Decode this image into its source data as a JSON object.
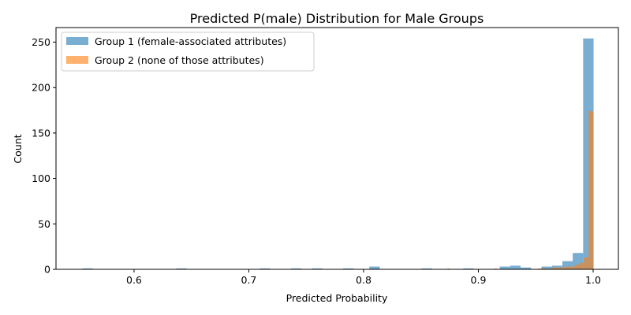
{
  "chart_data": {
    "type": "histogram",
    "title": "Predicted P(male) Distribution for Male Groups",
    "xlabel": "Predicted Probability",
    "ylabel": "Count",
    "xlim": [
      0.532,
      1.022
    ],
    "ylim": [
      0,
      266
    ],
    "xticks": [
      0.6,
      0.7,
      0.8,
      0.9,
      1.0
    ],
    "xtick_labels": [
      "0.6",
      "0.7",
      "0.8",
      "0.9",
      "1.0"
    ],
    "yticks": [
      0,
      50,
      100,
      150,
      200,
      250
    ],
    "ytick_labels": [
      "0",
      "50",
      "100",
      "150",
      "200",
      "250"
    ],
    "legend_position": "upper-left",
    "grid": false,
    "series": [
      {
        "name": "Group 1 (female-associated attributes)",
        "color": "#1f77b4",
        "opacity": 0.6,
        "bins": [
          {
            "x0": 0.555,
            "x1": 0.5641,
            "count": 1
          },
          {
            "x0": 0.6368,
            "x1": 0.6459,
            "count": 1
          },
          {
            "x0": 0.7095,
            "x1": 0.7186,
            "count": 1
          },
          {
            "x0": 0.7368,
            "x1": 0.7459,
            "count": 1
          },
          {
            "x0": 0.755,
            "x1": 0.7641,
            "count": 1
          },
          {
            "x0": 0.7822,
            "x1": 0.7913,
            "count": 1
          },
          {
            "x0": 0.805,
            "x1": 0.8141,
            "count": 3
          },
          {
            "x0": 0.8504,
            "x1": 0.8595,
            "count": 1
          },
          {
            "x0": 0.8868,
            "x1": 0.8959,
            "count": 1
          },
          {
            "x0": 0.9186,
            "x1": 0.9277,
            "count": 3
          },
          {
            "x0": 0.9277,
            "x1": 0.9368,
            "count": 4
          },
          {
            "x0": 0.9368,
            "x1": 0.9459,
            "count": 2
          },
          {
            "x0": 0.955,
            "x1": 0.9641,
            "count": 3
          },
          {
            "x0": 0.9641,
            "x1": 0.9732,
            "count": 4
          },
          {
            "x0": 0.9732,
            "x1": 0.9822,
            "count": 9
          },
          {
            "x0": 0.9822,
            "x1": 0.9913,
            "count": 18
          },
          {
            "x0": 0.9913,
            "x1": 1.0004,
            "count": 254
          }
        ]
      },
      {
        "name": "Group 2 (none of those attributes)",
        "color": "#ff7f0e",
        "opacity": 0.6,
        "bins": [
          {
            "x0": 0.873,
            "x1": 0.875,
            "count": 1
          },
          {
            "x0": 0.914,
            "x1": 0.916,
            "count": 1
          },
          {
            "x0": 0.952,
            "x1": 0.956,
            "count": 1
          },
          {
            "x0": 0.956,
            "x1": 0.96,
            "count": 1
          },
          {
            "x0": 0.964,
            "x1": 0.968,
            "count": 2
          },
          {
            "x0": 0.968,
            "x1": 0.972,
            "count": 2
          },
          {
            "x0": 0.972,
            "x1": 0.976,
            "count": 2
          },
          {
            "x0": 0.976,
            "x1": 0.98,
            "count": 3
          },
          {
            "x0": 0.98,
            "x1": 0.984,
            "count": 3
          },
          {
            "x0": 0.984,
            "x1": 0.988,
            "count": 5
          },
          {
            "x0": 0.988,
            "x1": 0.992,
            "count": 7
          },
          {
            "x0": 0.992,
            "x1": 0.996,
            "count": 13
          },
          {
            "x0": 0.996,
            "x1": 1.0,
            "count": 174
          }
        ]
      }
    ]
  }
}
